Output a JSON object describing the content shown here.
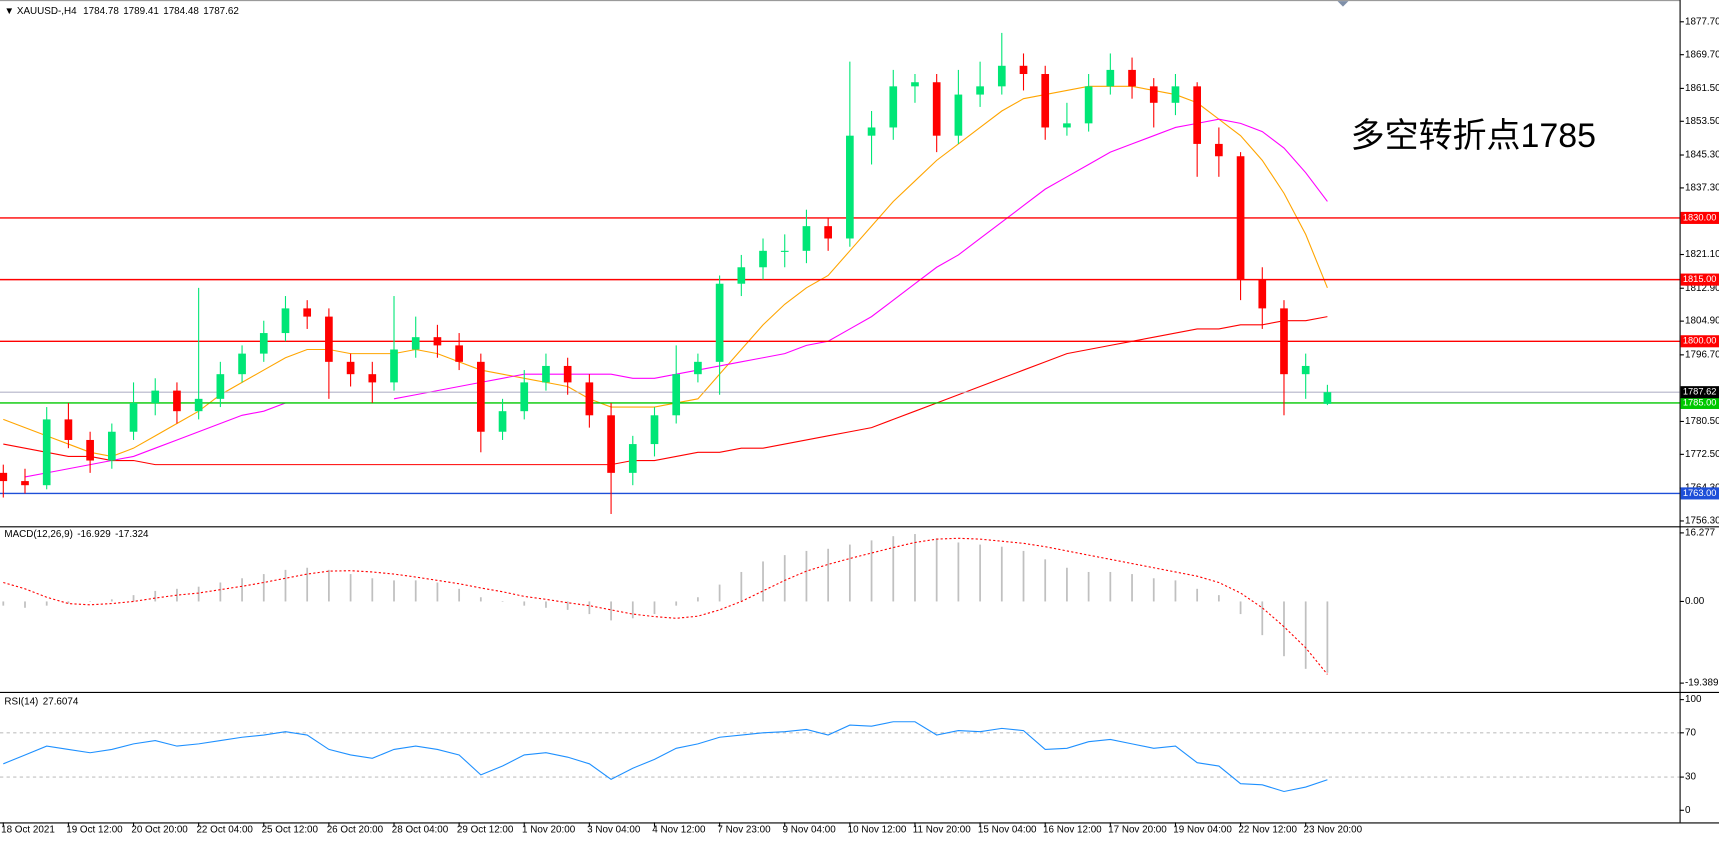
{
  "chart_data": [
    {
      "type": "candlestick",
      "title": "XAUUSD-,H4",
      "categories": [
        "18 Oct 2021",
        null,
        null,
        "19 Oct 12:00",
        null,
        null,
        "20 Oct 20:00",
        null,
        null,
        "22 Oct 04:00",
        null,
        null,
        "25 Oct 12:00",
        null,
        null,
        "26 Oct 20:00",
        null,
        null,
        "28 Oct 04:00",
        null,
        null,
        "29 Oct 12:00",
        null,
        null,
        "1 Nov 20:00",
        null,
        null,
        "3 Nov 04:00",
        null,
        null,
        "4 Nov 12:00",
        null,
        null,
        "7 Nov 23:00",
        null,
        null,
        "9 Nov 04:00",
        null,
        null,
        "10 Nov 12:00",
        null,
        null,
        "11 Nov 20:00",
        null,
        null,
        "15 Nov 04:00",
        null,
        null,
        "16 Nov 12:00",
        null,
        null,
        "17 Nov 20:00",
        null,
        null,
        "19 Nov 04:00",
        null,
        null,
        "22 Nov 12:00",
        null,
        null,
        "23 Nov 20:00",
        null
      ],
      "open": [
        1768,
        1766,
        1765,
        1781,
        1776,
        1771,
        1778,
        1785,
        1788,
        1783,
        1786,
        1792,
        1797,
        1802,
        1808,
        1806,
        1795,
        1792,
        1790,
        1798,
        1801,
        1799,
        1795,
        1778,
        1783,
        1790,
        1794,
        1790,
        1782,
        1768,
        1775,
        1782,
        1792,
        1795,
        1814,
        1818,
        1822,
        1822,
        1828,
        1825,
        1850,
        1852,
        1862,
        1863,
        1850,
        1860,
        1862,
        1867,
        1865,
        1852,
        1853,
        1862,
        1866,
        1862,
        1858,
        1862,
        1848,
        1845,
        1815,
        1808,
        1792,
        1784.78
      ],
      "high": [
        1770,
        1769,
        1784,
        1785,
        1778,
        1780,
        1790,
        1791,
        1790,
        1813,
        1795,
        1799,
        1805,
        1811,
        1810,
        1808,
        1797,
        1795,
        1811,
        1806,
        1804,
        1802,
        1797,
        1786,
        1793,
        1797,
        1796,
        1792,
        1785,
        1777,
        1784,
        1799,
        1797,
        1816,
        1821,
        1825,
        1826,
        1832,
        1830,
        1868,
        1856,
        1866,
        1865,
        1865,
        1866,
        1868,
        1875,
        1870,
        1867,
        1858,
        1865,
        1870,
        1869,
        1864,
        1865,
        1863,
        1852,
        1846,
        1818,
        1810,
        1797,
        1789.41
      ],
      "low": [
        1762,
        1763,
        1764,
        1774,
        1768,
        1769,
        1776,
        1782,
        1780,
        1781,
        1784,
        1790,
        1795,
        1800,
        1803,
        1786,
        1789,
        1785,
        1788,
        1796,
        1796,
        1793,
        1773,
        1776,
        1781,
        1788,
        1787,
        1779,
        1758,
        1765,
        1772,
        1780,
        1790,
        1787,
        1811,
        1815,
        1818,
        1819,
        1822,
        1823,
        1843,
        1849,
        1858,
        1846,
        1848,
        1857,
        1860,
        1861,
        1849,
        1850,
        1851,
        1860,
        1859,
        1852,
        1855,
        1840,
        1840,
        1810,
        1803,
        1782,
        1786,
        1784.48
      ],
      "close": [
        1766,
        1765,
        1781,
        1776,
        1771,
        1778,
        1785,
        1788,
        1783,
        1786,
        1792,
        1797,
        1802,
        1808,
        1806,
        1795,
        1792,
        1790,
        1798,
        1801,
        1799,
        1795,
        1778,
        1783,
        1790,
        1794,
        1790,
        1782,
        1768,
        1775,
        1782,
        1792,
        1795,
        1814,
        1818,
        1822,
        1822,
        1828,
        1825,
        1850,
        1852,
        1862,
        1863,
        1850,
        1860,
        1862,
        1867,
        1865,
        1852,
        1853,
        1862,
        1866,
        1862,
        1858,
        1862,
        1848,
        1845,
        1815,
        1808,
        1792,
        1794,
        1787.62
      ],
      "up_color": "#00e676",
      "down_color": "#ff0000",
      "price_line_color": "#b4b4c8",
      "moving_averages": [
        {
          "color": "#ffa500",
          "values": [
            1781,
            1779,
            1777,
            1775,
            1773,
            1772,
            1774,
            1777,
            1780,
            1783,
            1787,
            1790,
            1793,
            1796,
            1798,
            1798,
            1797,
            1797,
            1797,
            1798,
            1797,
            1795,
            1793,
            1792,
            1791,
            1790,
            1789,
            1786,
            1784,
            1784,
            1784,
            1785,
            1786,
            1792,
            1798,
            1804,
            1809,
            1813,
            1816,
            1822,
            1828,
            1834,
            1839,
            1844,
            1848,
            1852,
            1856,
            1859,
            1860,
            1861,
            1862,
            1862,
            1862,
            1861,
            1860,
            1858,
            1854,
            1850,
            1844,
            1836,
            1826,
            1813
          ]
        },
        {
          "color": "#ff00ff",
          "values": [
            null,
            1767,
            1768,
            1769,
            1770,
            1771,
            1772,
            1774,
            1776,
            1778,
            1780,
            1782,
            1783,
            1785,
            null,
            null,
            null,
            null,
            1786,
            1787,
            1788,
            1789,
            1790,
            1791,
            1792,
            1792,
            1792,
            1792,
            1792,
            1791,
            1791,
            1792,
            1793,
            1794,
            1795,
            1796,
            1797,
            1799,
            1800,
            1803,
            1806,
            1810,
            1814,
            1818,
            1821,
            1825,
            1829,
            1833,
            1837,
            1840,
            1843,
            1846,
            1848,
            1850,
            1852,
            1853,
            1854,
            1853,
            1851,
            1847,
            1841,
            1834
          ]
        },
        {
          "color": "#ff0000",
          "values": [
            1775,
            1774,
            1773,
            1772,
            1772,
            1771,
            1771,
            1770,
            1770,
            1770,
            1770,
            1770,
            1770,
            1770,
            1770,
            1770,
            1770,
            1770,
            1770,
            1770,
            1770,
            1770,
            1770,
            1770,
            1770,
            1770,
            1770,
            1770,
            1770,
            1771,
            1771,
            1772,
            1773,
            1773,
            1774,
            1774,
            1775,
            1776,
            1777,
            1778,
            1779,
            1781,
            1783,
            1785,
            1787,
            1789,
            1791,
            1793,
            1795,
            1797,
            1798,
            1799,
            1800,
            1801,
            1802,
            1803,
            1803,
            1804,
            1804,
            1805,
            1805,
            1806
          ]
        }
      ],
      "levels": [
        {
          "value": 1830,
          "label": "1830.00",
          "color": "#ff0000"
        },
        {
          "value": 1815,
          "label": "1815.00",
          "color": "#ff0000"
        },
        {
          "value": 1800,
          "label": "1800.00",
          "color": "#ff0000"
        },
        {
          "value": 1785,
          "label": "1785.00",
          "color": "#00c800"
        },
        {
          "value": 1763,
          "label": "1763.00",
          "color": "#1e4fd8"
        }
      ],
      "annotation": "多空转折点1785",
      "annotation_color": "#ff0000",
      "ylim": [
        1755,
        1883
      ],
      "yticks": [
        {
          "value": 1877.7,
          "label": "1877.70"
        },
        {
          "value": 1869.7,
          "label": "1869.70"
        },
        {
          "value": 1861.5,
          "label": "1861.50"
        },
        {
          "value": 1853.5,
          "label": "1853.50"
        },
        {
          "value": 1845.3,
          "label": "1845.30"
        },
        {
          "value": 1837.3,
          "label": "1837.30"
        },
        {
          "value": 1821.1,
          "label": "1821.10"
        },
        {
          "value": 1812.9,
          "label": "1812.90"
        },
        {
          "value": 1804.9,
          "label": "1804.90"
        },
        {
          "value": 1796.7,
          "label": "1796.70"
        },
        {
          "value": 1780.5,
          "label": "1780.50"
        },
        {
          "value": 1772.5,
          "label": "1772.50"
        },
        {
          "value": 1764.3,
          "label": "1764.30"
        },
        {
          "value": 1756.3,
          "label": "1756.30"
        }
      ]
    },
    {
      "type": "macd",
      "title": "MACD(12,26,9)",
      "histogram": {
        "color": "#c0c0c0",
        "values": [
          -1,
          -1.5,
          -1,
          -0.5,
          0,
          0.5,
          1.5,
          2.5,
          3,
          3.5,
          4.5,
          5.5,
          6.5,
          7.5,
          8,
          7.5,
          6.5,
          5.5,
          5,
          5,
          4.5,
          3,
          1,
          0,
          -1,
          -1.5,
          -2,
          -3,
          -4.5,
          -4,
          -3,
          -1,
          1,
          4,
          7,
          9.5,
          11,
          12,
          12.5,
          13.5,
          14.5,
          15.5,
          16,
          15,
          14,
          13.5,
          13,
          12,
          10,
          8,
          7,
          7,
          6.5,
          5.5,
          5,
          3,
          1.5,
          -3,
          -8,
          -13,
          -16,
          -16.929
        ]
      },
      "signal": {
        "color": "#ff0000",
        "values": [
          4.5,
          3,
          1,
          -0.5,
          -0.8,
          -0.5,
          0,
          0.8,
          1.5,
          2,
          2.8,
          3.6,
          4.5,
          5.5,
          6.5,
          7.2,
          7.3,
          7,
          6.5,
          5.8,
          5,
          4.2,
          3.2,
          2.3,
          1.2,
          0.5,
          -0.3,
          -1,
          -2,
          -3,
          -3.6,
          -4,
          -3.5,
          -2,
          0,
          2.5,
          5,
          7.2,
          8.8,
          10.2,
          11.5,
          12.8,
          14,
          14.8,
          15,
          14.8,
          14.3,
          13.8,
          13,
          12,
          11,
          10,
          9,
          8,
          7,
          6,
          4.5,
          2,
          -1.5,
          -6,
          -11,
          -17.324
        ]
      },
      "ylim": [
        -21.21,
        17.58
      ],
      "yticks": [
        16.277,
        {
          "value": 0,
          "label": "0.00"
        },
        -19.389
      ]
    },
    {
      "type": "line",
      "title": "RSI(14)",
      "color": "#1e90ff",
      "values": [
        42,
        50,
        58,
        55,
        52,
        55,
        60,
        63,
        58,
        60,
        63,
        66,
        68,
        71,
        68,
        55,
        50,
        47,
        55,
        58,
        55,
        50,
        32,
        40,
        50,
        52,
        48,
        42,
        28,
        38,
        46,
        56,
        60,
        66,
        68,
        70,
        71,
        73,
        68,
        77,
        76,
        80,
        80,
        68,
        72,
        71,
        74,
        72,
        55,
        56,
        62,
        64,
        60,
        56,
        58,
        43,
        40,
        24,
        23,
        17,
        21,
        27.6074
      ],
      "levels": [
        70,
        30
      ],
      "ylim": [
        -10.9,
        105
      ],
      "yticks": [
        100,
        70,
        30,
        0
      ]
    }
  ]
}
